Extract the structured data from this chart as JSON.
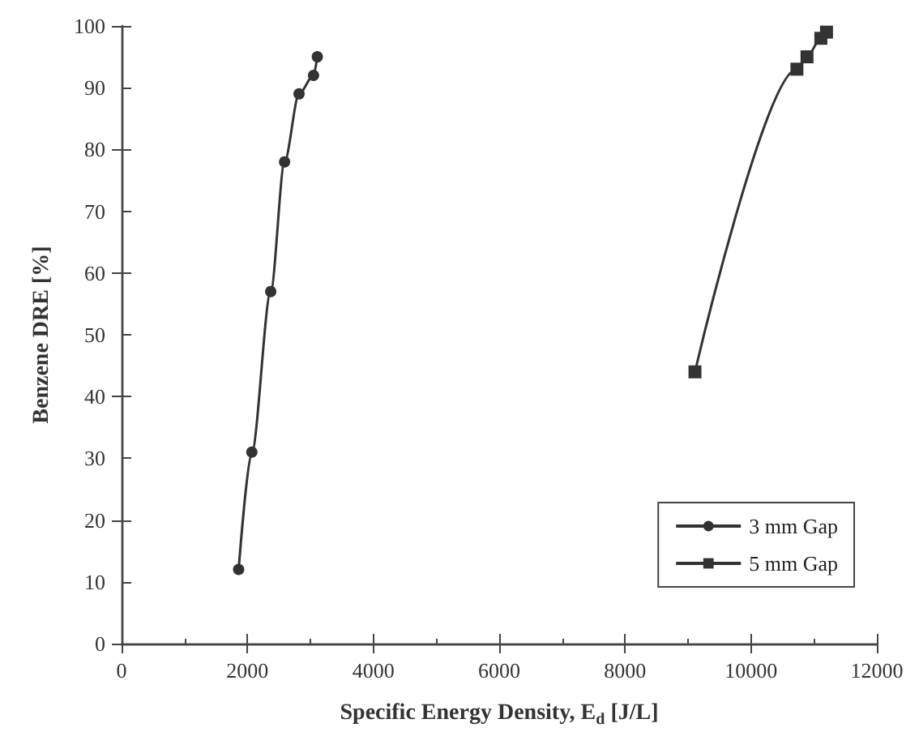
{
  "chart_data": {
    "type": "line",
    "xlabel": "Specific Energy Density, E$_{d}$ [J/L]",
    "ylabel": "Benzene DRE [%]",
    "series": [
      {
        "name": "3 mm Gap",
        "color": "#333333",
        "marker": "circle",
        "x": [
          1860,
          2070,
          2370,
          2590,
          2820,
          3050,
          3110
        ],
        "values": [
          12,
          31,
          57,
          78,
          89,
          92,
          95
        ]
      },
      {
        "name": "5 mm Gap",
        "color": "#333333",
        "marker": "square",
        "x": [
          9110,
          10730,
          10890,
          11110,
          11200
        ],
        "values": [
          44,
          93,
          95,
          98,
          99
        ]
      }
    ],
    "xlim": [
      0,
      12000
    ],
    "xticks": [
      0,
      2000,
      4000,
      6000,
      8000,
      10000,
      12000
    ],
    "ylim": [
      0,
      100
    ],
    "yticks": [
      0,
      10,
      20,
      30,
      40,
      50,
      60,
      70,
      80,
      90,
      100
    ],
    "legend": "bottom right",
    "grid": false,
    "line_style": "solid"
  }
}
